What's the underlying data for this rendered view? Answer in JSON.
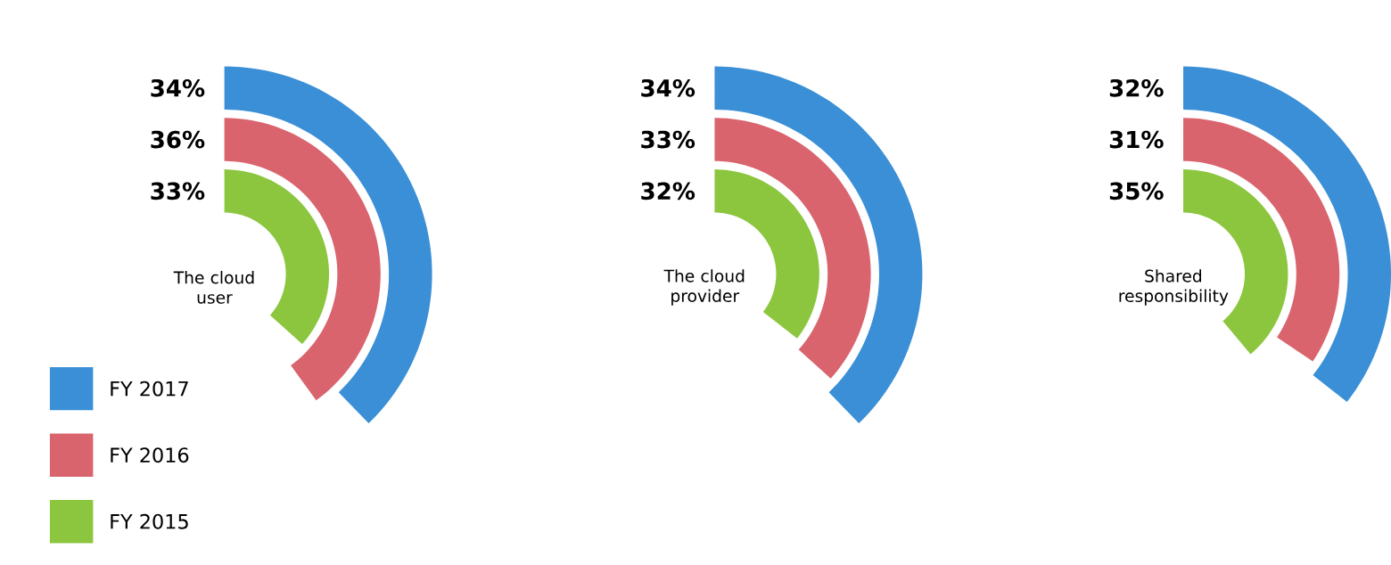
{
  "chart_data": {
    "type": "other",
    "categories": [
      "The cloud user",
      "The cloud provider",
      "Shared responsibility"
    ],
    "legend": "bottom left",
    "series": [
      {
        "name": "FY 2017",
        "color": "#3a8fd6",
        "values": [
          34,
          34,
          32
        ],
        "value_labels": [
          "34%",
          "34%",
          "32%"
        ]
      },
      {
        "name": "FY 2016",
        "color": "#d9646e",
        "values": [
          36,
          33,
          31
        ],
        "value_labels": [
          "36%",
          "33%",
          "31%"
        ]
      },
      {
        "name": "FY 2015",
        "color": "#8cc63f",
        "values": [
          33,
          32,
          35
        ],
        "value_labels": [
          "33%",
          "32%",
          "35%"
        ]
      }
    ]
  }
}
